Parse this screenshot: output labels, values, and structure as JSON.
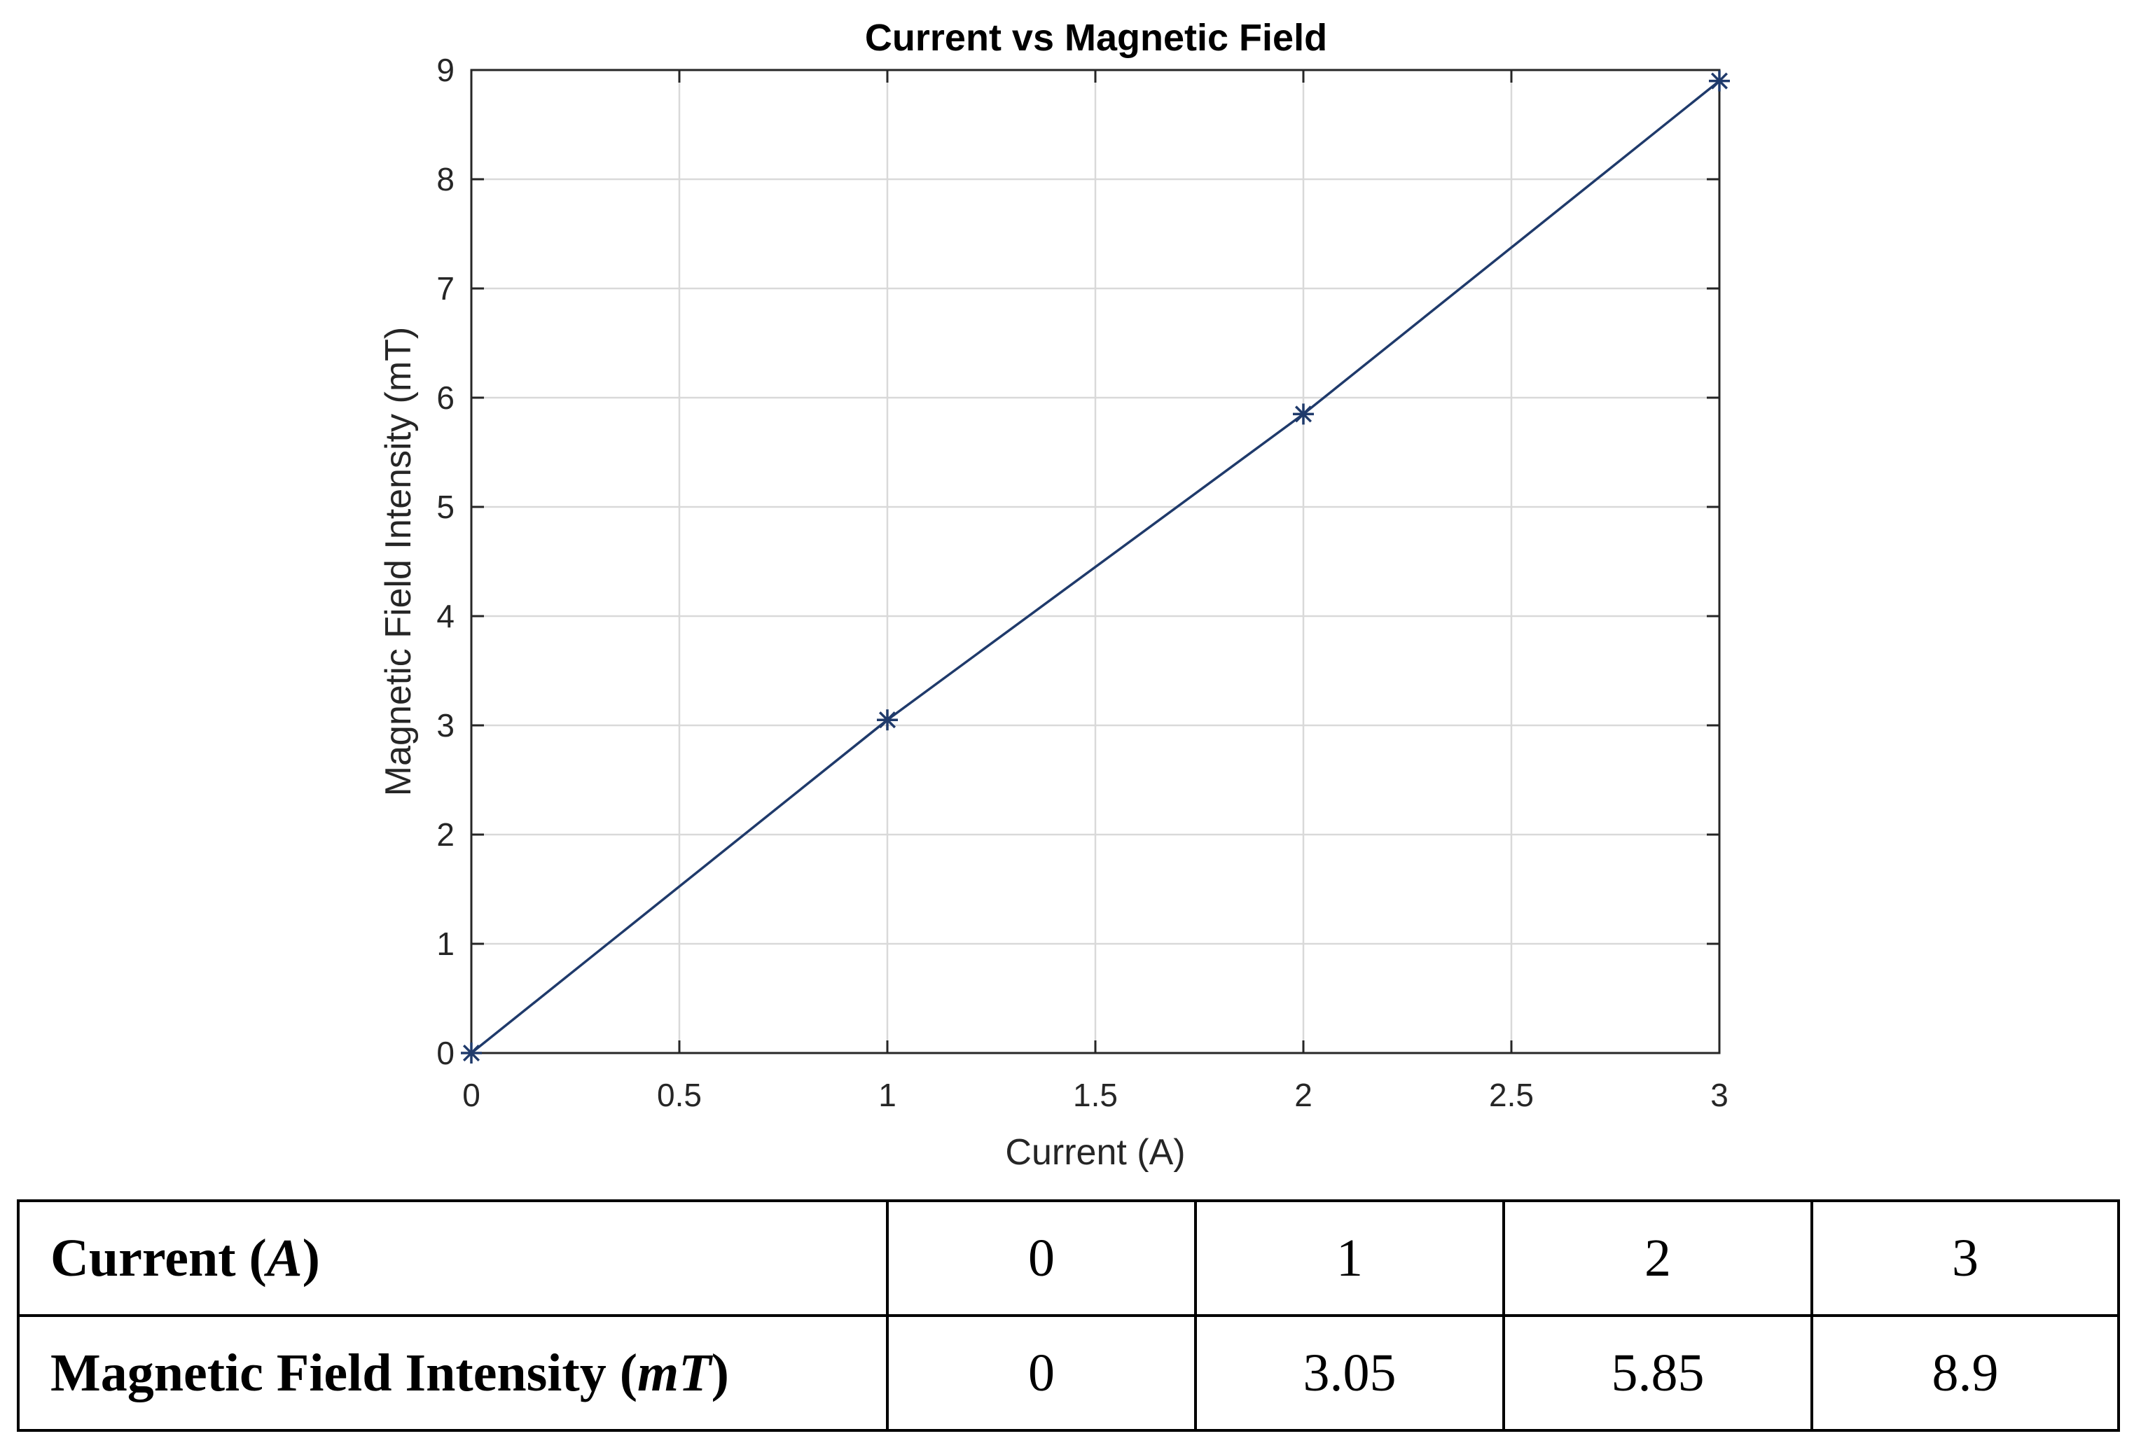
{
  "chart_data": {
    "type": "line",
    "title": "Current vs Magnetic Field",
    "xlabel": "Current (A)",
    "ylabel": "Magnetic Field Intensity (mT)",
    "x": [
      0,
      1,
      2,
      3
    ],
    "series": [
      {
        "name": "Magnetic Field Intensity",
        "values": [
          0,
          3.05,
          5.85,
          8.9
        ],
        "marker": "asterisk"
      }
    ],
    "xlim": [
      0,
      3
    ],
    "ylim": [
      0,
      9
    ],
    "xticks": [
      0,
      0.5,
      1,
      1.5,
      2,
      2.5,
      3
    ],
    "yticks": [
      0,
      1,
      2,
      3,
      4,
      5,
      6,
      7,
      8,
      9
    ],
    "xtick_labels": [
      "0",
      "0.5",
      "1",
      "1.5",
      "2",
      "2.5",
      "3"
    ],
    "ytick_labels": [
      "0",
      "1",
      "2",
      "3",
      "4",
      "5",
      "6",
      "7",
      "8",
      "9"
    ],
    "grid": true,
    "line_color": "#1f3a6b"
  },
  "table": {
    "rows": [
      {
        "label": "Current (",
        "unit": "A",
        "label_end": ")",
        "cells": [
          "0",
          "1",
          "2",
          "3"
        ]
      },
      {
        "label": "Magnetic Field Intensity (",
        "unit": "mT",
        "label_end": ")",
        "cells": [
          "0",
          "3.05",
          "5.85",
          "8.9"
        ]
      }
    ]
  }
}
